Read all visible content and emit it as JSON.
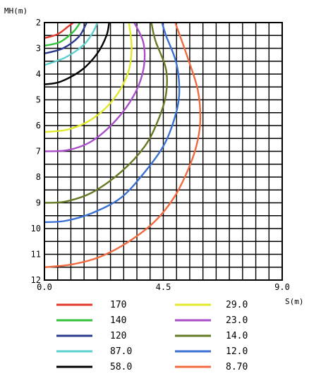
{
  "chart_data": {
    "type": "line",
    "xlabel": "S(m)",
    "ylabel": "MH(m)",
    "xlim": [
      0,
      9
    ],
    "ylim": [
      2,
      12
    ],
    "y_inverted": true,
    "grid": true,
    "x_ticks": [
      "0.0",
      "4.5",
      "9.0"
    ],
    "y_ticks": [
      "2",
      "3",
      "4",
      "5",
      "6",
      "7",
      "8",
      "9",
      "10",
      "11",
      "12"
    ],
    "legend_position": "bottom",
    "series": [
      {
        "name": "170",
        "color": "#e23a2b",
        "x": [
          0,
          0.5,
          0.9,
          1.1
        ],
        "y": [
          2.6,
          2.45,
          2.15,
          2.0
        ]
      },
      {
        "name": "140",
        "color": "#33c23a",
        "x": [
          0,
          0.6,
          1.1,
          1.35
        ],
        "y": [
          2.9,
          2.75,
          2.35,
          2.0
        ]
      },
      {
        "name": "120",
        "color": "#2b3a8e",
        "x": [
          0,
          0.7,
          1.3,
          1.6
        ],
        "y": [
          3.2,
          3.0,
          2.55,
          2.0
        ]
      },
      {
        "name": "87.0",
        "color": "#5ecfcf",
        "x": [
          0,
          0.8,
          1.5,
          1.85,
          2.0
        ],
        "y": [
          3.65,
          3.35,
          2.85,
          2.35,
          2.0
        ]
      },
      {
        "name": "58.0",
        "color": "#000000",
        "x": [
          0,
          0.6,
          1.4,
          2.0,
          2.35,
          2.45
        ],
        "y": [
          4.4,
          4.3,
          3.85,
          3.2,
          2.5,
          2.0
        ]
      },
      {
        "name": "29.0",
        "color": "#e0e82a",
        "x": [
          0,
          0.9,
          1.8,
          2.6,
          3.15,
          3.3,
          3.2
        ],
        "y": [
          6.25,
          6.15,
          5.75,
          5.0,
          4.0,
          3.0,
          2.0
        ]
      },
      {
        "name": "23.0",
        "color": "#a84fc8",
        "x": [
          0,
          0.9,
          1.8,
          2.7,
          3.4,
          3.75,
          3.75,
          3.4
        ],
        "y": [
          7.0,
          6.95,
          6.6,
          5.8,
          4.8,
          3.8,
          2.8,
          2.0
        ]
      },
      {
        "name": "14.0",
        "color": "#657a24",
        "x": [
          0,
          0.8,
          1.8,
          2.9,
          3.8,
          4.3,
          4.6,
          4.6,
          4.2,
          4.05
        ],
        "y": [
          9.0,
          8.95,
          8.6,
          7.8,
          6.8,
          5.8,
          4.8,
          3.8,
          2.7,
          2.0
        ]
      },
      {
        "name": "12.0",
        "color": "#3a6fd2",
        "x": [
          0,
          0.8,
          1.8,
          2.9,
          3.8,
          4.5,
          4.9,
          5.1,
          5.0,
          4.6,
          4.45
        ],
        "y": [
          9.75,
          9.7,
          9.4,
          8.8,
          7.8,
          6.8,
          5.8,
          4.8,
          3.6,
          2.5,
          2.0
        ]
      },
      {
        "name": "8.70",
        "color": "#f06a40",
        "x": [
          0,
          1.0,
          2.1,
          3.2,
          4.2,
          4.9,
          5.4,
          5.75,
          5.9,
          5.8,
          5.4,
          4.95
        ],
        "y": [
          11.5,
          11.4,
          11.1,
          10.5,
          9.7,
          8.8,
          7.8,
          6.8,
          5.8,
          4.6,
          3.3,
          2.0
        ]
      }
    ]
  }
}
